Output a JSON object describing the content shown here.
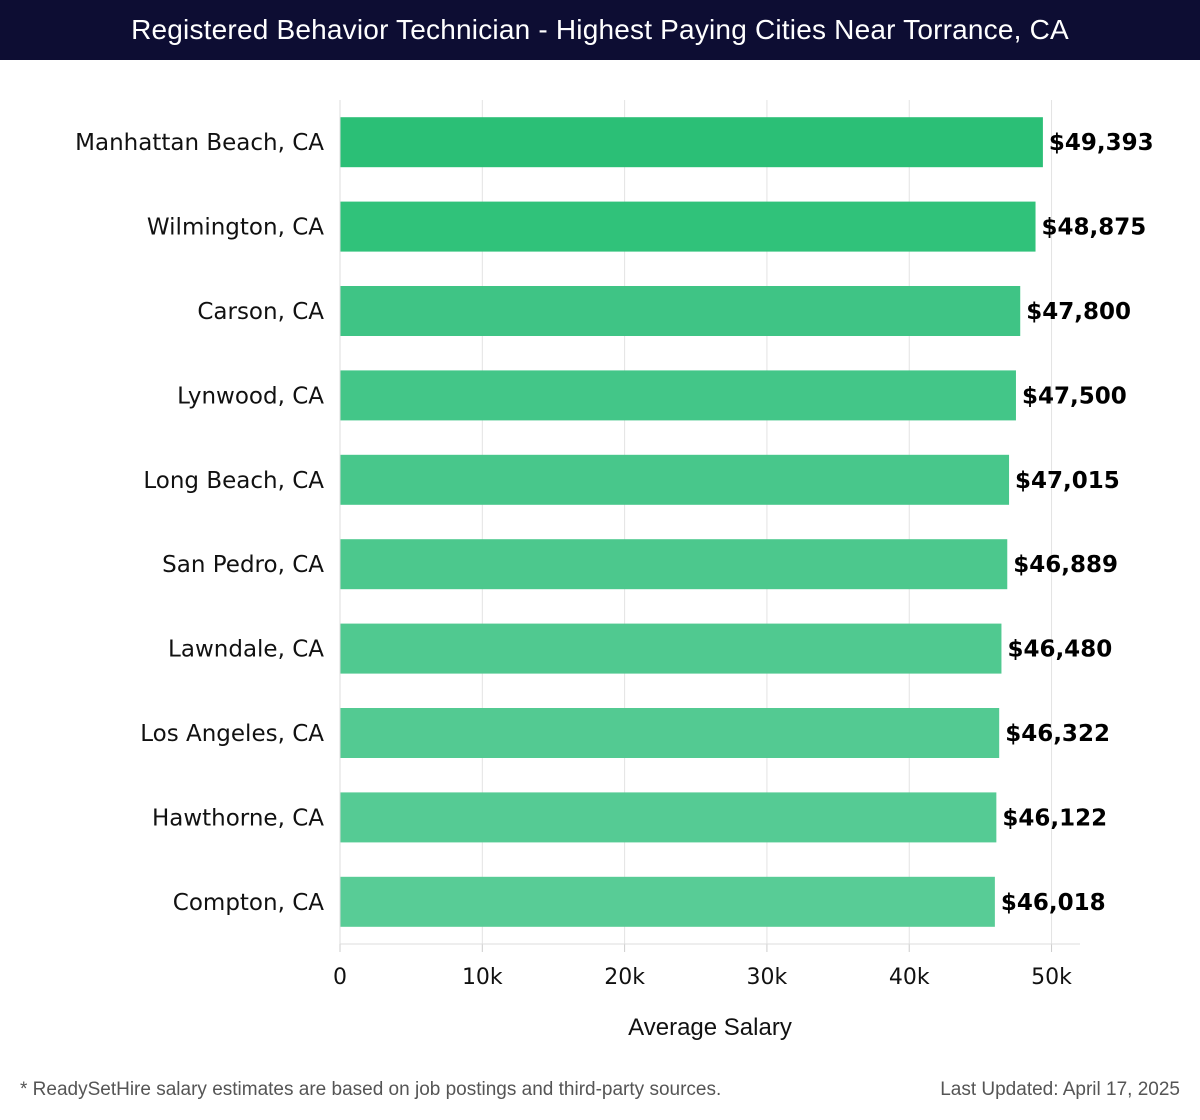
{
  "header": {
    "title": "Registered Behavior Technician - Highest Paying Cities Near Torrance, CA"
  },
  "chart_data": {
    "type": "bar",
    "orientation": "horizontal",
    "title": "Registered Behavior Technician - Highest Paying Cities Near Torrance, CA",
    "xlabel": "Average Salary",
    "ylabel": "",
    "xlim": [
      0,
      52000
    ],
    "ticks": [
      {
        "value": 0,
        "label": "0"
      },
      {
        "value": 10000,
        "label": "10k"
      },
      {
        "value": 20000,
        "label": "20k"
      },
      {
        "value": 30000,
        "label": "30k"
      },
      {
        "value": 40000,
        "label": "40k"
      },
      {
        "value": 50000,
        "label": "50k"
      }
    ],
    "grid": true,
    "categories": [
      "Manhattan Beach, CA",
      "Wilmington, CA",
      "Carson, CA",
      "Lynwood, CA",
      "Long Beach, CA",
      "San Pedro, CA",
      "Lawndale, CA",
      "Los Angeles, CA",
      "Hawthorne, CA",
      "Compton, CA"
    ],
    "values": [
      49393,
      48875,
      47800,
      47500,
      47015,
      46889,
      46480,
      46322,
      46122,
      46018
    ],
    "value_labels": [
      "$49,393",
      "$48,875",
      "$47,800",
      "$47,500",
      "$47,015",
      "$46,889",
      "$46,480",
      "$46,322",
      "$46,122",
      "$46,018"
    ],
    "bar_colors": [
      "#2bbf76",
      "#30c27a",
      "#3fc485",
      "#43c688",
      "#48c78b",
      "#4cc88d",
      "#50c990",
      "#53ca92",
      "#55cb94",
      "#58cc96"
    ]
  },
  "footer": {
    "note": "* ReadySetHire salary estimates are based on job postings and third-party sources.",
    "updated": "Last Updated: April 17, 2025"
  }
}
